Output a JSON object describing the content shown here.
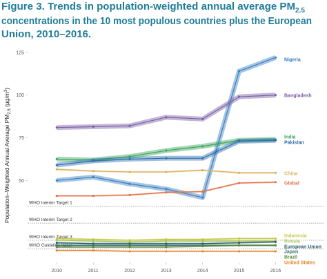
{
  "chart_data": {
    "type": "line",
    "title_lines": [
      "Figure 3. Trends in population-weighted annual average PM",
      "concentrations in the 10 most populous countries plus the European",
      "Union, 2010–2016."
    ],
    "title_subscript": "2.5",
    "ylabel_parts": [
      "Population–Weighted Annual Average PM",
      "2.5",
      " (µg/m",
      "3",
      ")"
    ],
    "x": [
      2010,
      2011,
      2012,
      2013,
      2014,
      2015,
      2016
    ],
    "xlim": [
      2009.2,
      2016.2
    ],
    "ylim": [
      2,
      129
    ],
    "yticks": [
      50,
      75,
      100,
      125
    ],
    "reference_lines": [
      {
        "label": "WHO Interim Target 1",
        "value": 35
      },
      {
        "label": "WHO Interim Target 2",
        "value": 25
      },
      {
        "label": "WHO Interim Target 3",
        "value": 15
      },
      {
        "label": "WHO Guideline Value",
        "value": 10
      }
    ],
    "series": [
      {
        "name": "Nigeria",
        "color": "#3a7fc1",
        "values": [
          50,
          52,
          48,
          45,
          40,
          114,
          122
        ]
      },
      {
        "name": "Bangladesh",
        "color": "#7b5ea7",
        "values": [
          81,
          81.5,
          82,
          87,
          86,
          99,
          100
        ]
      },
      {
        "name": "India",
        "color": "#3aa35a",
        "values": [
          62.5,
          62,
          64,
          67.5,
          70,
          73.5,
          74
        ]
      },
      {
        "name": "Pakistan",
        "color": "#2f6fb0",
        "values": [
          59,
          61.5,
          62.5,
          63,
          63,
          73,
          73.5
        ]
      },
      {
        "name": "China",
        "color": "#d8b25c",
        "values": [
          56.5,
          55.5,
          55,
          55,
          56,
          54.5,
          54.5
        ]
      },
      {
        "name": "Global",
        "color": "#e0734a",
        "values": [
          41,
          41,
          41.5,
          43,
          43.5,
          48.5,
          49
        ]
      },
      {
        "name": "Indonesia",
        "color": "#c8c844",
        "values": [
          16,
          15.5,
          15,
          15.5,
          15.5,
          16,
          16
        ]
      },
      {
        "name": "Russia",
        "color": "#a8c85a",
        "values": [
          15,
          14.5,
          14,
          14.5,
          14.5,
          14.5,
          14.5
        ]
      },
      {
        "name": "European Union",
        "color": "#2f5b6e",
        "values": [
          13.5,
          13,
          13,
          13,
          13,
          13.5,
          14
        ]
      },
      {
        "name": "Japan",
        "color": "#3c7a74",
        "values": [
          12,
          12,
          12,
          12,
          12,
          12,
          12
        ]
      },
      {
        "name": "Brazil",
        "color": "#5a8a3c",
        "values": [
          11,
          11,
          11,
          11,
          11.5,
          12,
          12
        ]
      },
      {
        "name": "United States",
        "color": "#e8832a",
        "values": [
          9,
          9,
          8.5,
          8.5,
          8.5,
          8.5,
          8.5
        ]
      }
    ]
  }
}
